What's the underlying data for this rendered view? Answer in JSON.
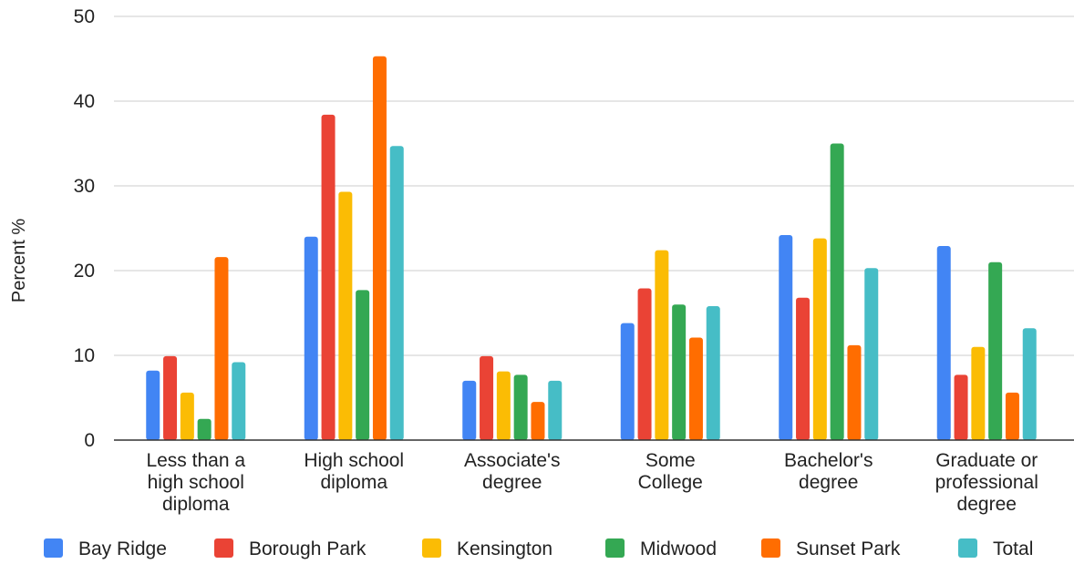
{
  "chart_data": {
    "type": "bar",
    "title": "",
    "xlabel": "",
    "ylabel": "Percent %",
    "ylim": [
      0,
      50
    ],
    "yticks": [
      0,
      10,
      20,
      30,
      40,
      50
    ],
    "grid": true,
    "legend_position": "bottom",
    "categories": [
      [
        "Less than a",
        "high school",
        "diploma"
      ],
      [
        "High school",
        "diploma"
      ],
      [
        "Associate's",
        "degree"
      ],
      [
        "Some",
        "College"
      ],
      [
        "Bachelor's",
        "degree"
      ],
      [
        "Graduate or",
        "professional",
        "degree"
      ]
    ],
    "series": [
      {
        "name": "Bay Ridge",
        "color": "#4285f4",
        "values": [
          8.2,
          24.0,
          7.0,
          13.8,
          24.2,
          22.9
        ]
      },
      {
        "name": "Borough Park",
        "color": "#ea4335",
        "values": [
          9.9,
          38.4,
          9.9,
          17.9,
          16.8,
          7.7
        ]
      },
      {
        "name": "Kensington",
        "color": "#fbbc04",
        "values": [
          5.6,
          29.3,
          8.1,
          22.4,
          23.8,
          11.0
        ]
      },
      {
        "name": "Midwood",
        "color": "#34a853",
        "values": [
          2.5,
          17.7,
          7.7,
          16.0,
          35.0,
          21.0
        ]
      },
      {
        "name": "Sunset Park",
        "color": "#ff6d01",
        "values": [
          21.6,
          45.3,
          4.5,
          12.1,
          11.2,
          5.6
        ]
      },
      {
        "name": "Total",
        "color": "#46bdc6",
        "values": [
          9.2,
          34.7,
          7.0,
          15.8,
          20.3,
          13.2
        ]
      }
    ]
  }
}
